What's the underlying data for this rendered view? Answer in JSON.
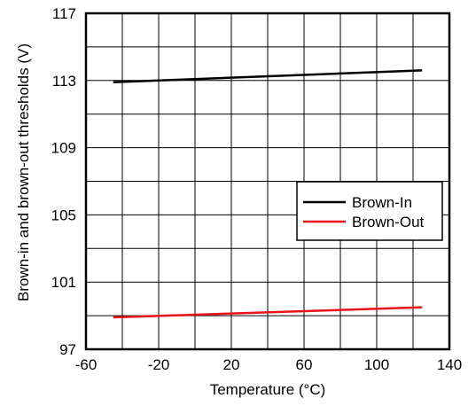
{
  "chart_data": {
    "type": "line",
    "xlabel": "Temperature (°C)",
    "ylabel": "Brown-in and brown-out thresholds (V)",
    "xlim": [
      -60,
      140
    ],
    "ylim": [
      97,
      117
    ],
    "x_ticks": [
      "-60",
      "-20",
      "20",
      "60",
      "100",
      "140"
    ],
    "y_ticks": [
      "97",
      "101",
      "105",
      "109",
      "113",
      "117"
    ],
    "x_grid_step": 20,
    "y_grid_step": 2,
    "grid": true,
    "legend_position": "center-right",
    "series": [
      {
        "name": "Brown-In",
        "color": "#000000",
        "x": [
          -45,
          125
        ],
        "y": [
          112.9,
          113.6
        ]
      },
      {
        "name": "Brown-Out",
        "color": "#e8141b",
        "x": [
          -45,
          125
        ],
        "y": [
          98.9,
          99.5
        ]
      }
    ]
  }
}
